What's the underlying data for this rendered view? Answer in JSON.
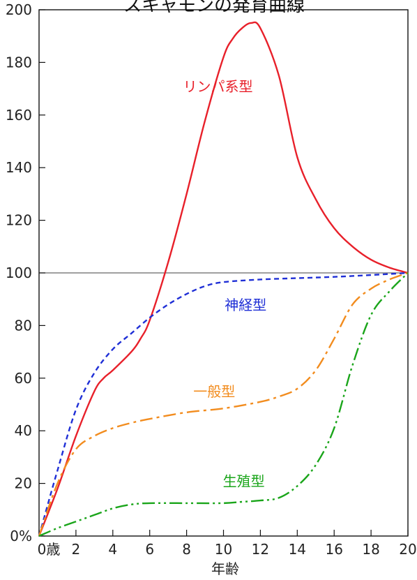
{
  "chart_data": {
    "type": "line",
    "title": "スキャモンの発育曲線",
    "xlabel": "年齢",
    "ylabel": "",
    "xlim": [
      0,
      20
    ],
    "ylim": [
      0,
      200
    ],
    "x_ticks": [
      "0歳",
      "2",
      "4",
      "6",
      "8",
      "10",
      "12",
      "14",
      "16",
      "18",
      "20"
    ],
    "y_ticks": [
      "0%",
      "20",
      "40",
      "60",
      "80",
      "100",
      "120",
      "140",
      "160",
      "180",
      "200"
    ],
    "reference_line": 100,
    "series": [
      {
        "name": "リンパ系型",
        "color": "#e8202a",
        "dash": "solid",
        "points": [
          [
            0,
            0
          ],
          [
            1,
            18
          ],
          [
            2,
            38
          ],
          [
            3,
            55
          ],
          [
            3.5,
            60
          ],
          [
            4,
            63
          ],
          [
            5,
            70
          ],
          [
            5.5,
            75
          ],
          [
            6,
            82
          ],
          [
            7,
            104
          ],
          [
            8,
            130
          ],
          [
            9,
            158
          ],
          [
            10,
            182
          ],
          [
            10.5,
            189
          ],
          [
            11,
            193
          ],
          [
            11.5,
            195
          ],
          [
            12,
            193
          ],
          [
            13,
            175
          ],
          [
            14,
            144
          ],
          [
            15,
            128
          ],
          [
            16,
            117
          ],
          [
            17,
            110
          ],
          [
            18,
            105
          ],
          [
            19,
            102
          ],
          [
            20,
            100
          ]
        ]
      },
      {
        "name": "神経型",
        "color": "#1f2fd6",
        "dash": "short",
        "points": [
          [
            0,
            0
          ],
          [
            1,
            25
          ],
          [
            2,
            48
          ],
          [
            3,
            62
          ],
          [
            4,
            71
          ],
          [
            5,
            77
          ],
          [
            6,
            83
          ],
          [
            7,
            88
          ],
          [
            8,
            92
          ],
          [
            9,
            95
          ],
          [
            10,
            96.5
          ],
          [
            12,
            97.5
          ],
          [
            14,
            98
          ],
          [
            16,
            98.5
          ],
          [
            18,
            99.2
          ],
          [
            20,
            100
          ]
        ]
      },
      {
        "name": "一般型",
        "color": "#f28c1e",
        "dash": "dashdot",
        "points": [
          [
            0,
            0
          ],
          [
            1,
            20
          ],
          [
            2,
            33
          ],
          [
            3,
            38
          ],
          [
            4,
            41
          ],
          [
            5,
            43
          ],
          [
            6,
            44.5
          ],
          [
            8,
            47
          ],
          [
            10,
            48.5
          ],
          [
            12,
            51
          ],
          [
            13,
            53
          ],
          [
            14,
            56
          ],
          [
            15,
            63
          ],
          [
            16,
            75
          ],
          [
            17,
            88
          ],
          [
            18,
            94
          ],
          [
            19,
            97.5
          ],
          [
            20,
            100
          ]
        ]
      },
      {
        "name": "生殖型",
        "color": "#1aa51a",
        "dash": "dashdotdot",
        "points": [
          [
            0,
            0
          ],
          [
            1,
            3
          ],
          [
            2,
            5.5
          ],
          [
            3,
            8
          ],
          [
            4,
            10.5
          ],
          [
            5,
            12
          ],
          [
            6,
            12.5
          ],
          [
            8,
            12.5
          ],
          [
            10,
            12.5
          ],
          [
            11,
            13
          ],
          [
            12,
            13.5
          ],
          [
            13,
            14.5
          ],
          [
            14,
            19
          ],
          [
            15,
            27
          ],
          [
            16,
            41
          ],
          [
            17,
            65
          ],
          [
            18,
            84
          ],
          [
            19,
            93
          ],
          [
            20,
            100
          ]
        ]
      }
    ],
    "series_labels": [
      {
        "text": "リンパ系型",
        "x": 9.7,
        "y": 169,
        "color": "#e8202a"
      },
      {
        "text": "神経型",
        "x": 11.2,
        "y": 86,
        "color": "#1f2fd6"
      },
      {
        "text": "一般型",
        "x": 9.5,
        "y": 53,
        "color": "#f28c1e"
      },
      {
        "text": "生殖型",
        "x": 11.1,
        "y": 19,
        "color": "#1aa51a"
      }
    ],
    "grid": false,
    "legend": "none"
  }
}
